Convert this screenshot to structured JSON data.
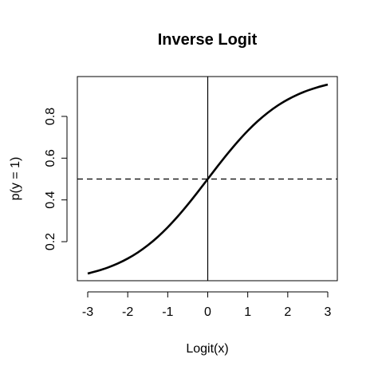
{
  "chart_data": {
    "type": "line",
    "title": "Inverse Logit",
    "xlabel": "Logit(x)",
    "ylabel": "p(y = 1)",
    "xlim": [
      -3,
      3
    ],
    "ylim": [
      0.0474,
      0.9526
    ],
    "x_ticks": [
      -3,
      -2,
      -1,
      0,
      1,
      2,
      3
    ],
    "x_tick_labels": [
      "-3",
      "-2",
      "-1",
      "0",
      "1",
      "2",
      "3"
    ],
    "y_ticks": [
      0.2,
      0.4,
      0.6,
      0.8
    ],
    "y_tick_labels": [
      "0.2",
      "0.4",
      "0.6",
      "0.8"
    ],
    "grid": false,
    "series": [
      {
        "x": [
          -3,
          -2.75,
          -2.5,
          -2.25,
          -2,
          -1.75,
          -1.5,
          -1.25,
          -1,
          -0.75,
          -0.5,
          -0.25,
          0,
          0.25,
          0.5,
          0.75,
          1,
          1.25,
          1.5,
          1.75,
          2,
          2.25,
          2.5,
          2.75,
          3
        ],
        "y": [
          0.0474,
          0.0601,
          0.0759,
          0.0953,
          0.1192,
          0.148,
          0.1824,
          0.2227,
          0.2689,
          0.3208,
          0.3775,
          0.4378,
          0.5,
          0.5622,
          0.6225,
          0.6792,
          0.7311,
          0.7773,
          0.8176,
          0.852,
          0.8808,
          0.9047,
          0.9241,
          0.9399,
          0.9526
        ],
        "color": "#000000",
        "line_style": "solid"
      }
    ],
    "reference_lines": [
      {
        "orientation": "horizontal",
        "value": 0.5,
        "line_style": "dashed",
        "color": "#000000"
      },
      {
        "orientation": "vertical",
        "value": 0,
        "line_style": "solid",
        "color": "#000000"
      }
    ]
  }
}
